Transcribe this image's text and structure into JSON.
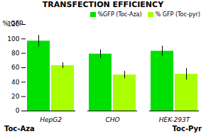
{
  "chart_data": {
    "type": "bar",
    "title": "TRANSFECTION EFFICIENCY",
    "ylabel": "% GFP",
    "categories": [
      "HepG2",
      "CHO",
      "HEK-293T"
    ],
    "series": [
      {
        "name": "%GFP (Toc-Aza)",
        "color": "#00e000",
        "values": [
          97,
          79,
          83
        ],
        "errors": [
          8,
          6,
          7
        ]
      },
      {
        "name": "% GFP (Toc-pyr)",
        "color": "#aaff00",
        "values": [
          63,
          50,
          51
        ],
        "errors": [
          4,
          5,
          8
        ]
      }
    ],
    "ylim": [
      0,
      120
    ],
    "yticks": [
      0,
      20,
      40,
      60,
      80,
      100,
      120
    ],
    "grid": false,
    "legend": "upper right",
    "annotations": [
      "Toc-Aza",
      "Toc-Pyr"
    ]
  }
}
